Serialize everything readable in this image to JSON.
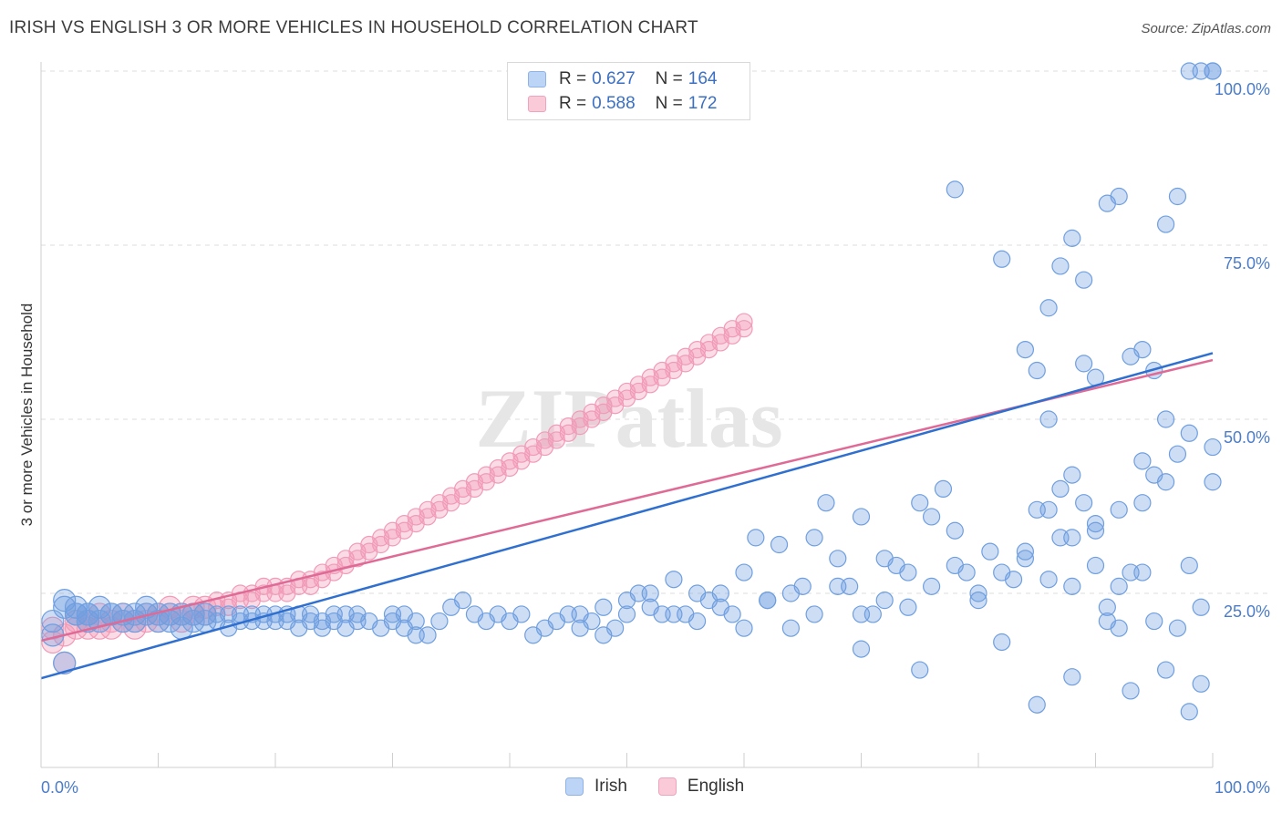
{
  "title": "IRISH VS ENGLISH 3 OR MORE VEHICLES IN HOUSEHOLD CORRELATION CHART",
  "source": "Source: ZipAtlas.com",
  "watermark": "ZIPatlas",
  "colors": {
    "irish": "#6f9fe0",
    "english": "#f29ab8",
    "irish_line": "#2f6fcf",
    "english_line": "#e06a96",
    "tick_text": "#4a7cc9"
  },
  "legend": {
    "irish": {
      "r_label": "R =",
      "r_value": "0.627",
      "n_label": "N =",
      "n_value": "164"
    },
    "english": {
      "r_label": "R =",
      "r_value": "0.588",
      "n_label": "N =",
      "n_value": "172"
    }
  },
  "chart_data": {
    "type": "scatter",
    "title": "IRISH VS ENGLISH 3 OR MORE VEHICLES IN HOUSEHOLD CORRELATION CHART",
    "xlabel": "",
    "ylabel": "3 or more Vehicles in Household",
    "xlim": [
      0,
      100
    ],
    "ylim": [
      0,
      100
    ],
    "x_tick_labels": [
      "0.0%",
      "100.0%"
    ],
    "y_tick_labels": [
      "25.0%",
      "50.0%",
      "75.0%",
      "100.0%"
    ],
    "y_ticks": [
      25,
      50,
      75,
      100
    ],
    "grid": "horizontal dashed",
    "legend_position": "top-center",
    "series": [
      {
        "name": "Irish",
        "trend": {
          "x0": 0,
          "y0": 12.8,
          "x1": 100,
          "y1": 59.5
        },
        "points": [
          [
            2,
            24
          ],
          [
            2,
            23
          ],
          [
            3,
            22
          ],
          [
            3,
            22
          ],
          [
            4,
            21
          ],
          [
            4,
            22
          ],
          [
            5,
            23
          ],
          [
            5,
            21
          ],
          [
            6,
            22
          ],
          [
            6,
            22
          ],
          [
            7,
            21
          ],
          [
            7,
            22
          ],
          [
            8,
            22
          ],
          [
            8,
            21
          ],
          [
            9,
            22
          ],
          [
            9,
            23
          ],
          [
            10,
            21
          ],
          [
            10,
            22
          ],
          [
            11,
            22
          ],
          [
            11,
            21
          ],
          [
            12,
            22
          ],
          [
            12,
            20
          ],
          [
            13,
            21
          ],
          [
            13,
            22
          ],
          [
            14,
            22
          ],
          [
            14,
            21
          ],
          [
            15,
            22
          ],
          [
            15,
            21
          ],
          [
            16,
            22
          ],
          [
            16,
            20
          ],
          [
            17,
            21
          ],
          [
            17,
            22
          ],
          [
            18,
            22
          ],
          [
            18,
            21
          ],
          [
            19,
            22
          ],
          [
            19,
            21
          ],
          [
            20,
            22
          ],
          [
            20,
            21
          ],
          [
            21,
            22
          ],
          [
            21,
            21
          ],
          [
            22,
            20
          ],
          [
            22,
            22
          ],
          [
            23,
            21
          ],
          [
            23,
            22
          ],
          [
            24,
            21
          ],
          [
            24,
            20
          ],
          [
            25,
            22
          ],
          [
            25,
            21
          ],
          [
            26,
            22
          ],
          [
            26,
            20
          ],
          [
            27,
            22
          ],
          [
            27,
            21
          ],
          [
            28,
            21
          ],
          [
            29,
            20
          ],
          [
            30,
            21
          ],
          [
            30,
            22
          ],
          [
            31,
            20
          ],
          [
            31,
            22
          ],
          [
            32,
            21
          ],
          [
            32,
            19
          ],
          [
            33,
            19
          ],
          [
            34,
            21
          ],
          [
            35,
            23
          ],
          [
            36,
            24
          ],
          [
            37,
            22
          ],
          [
            38,
            21
          ],
          [
            39,
            22
          ],
          [
            40,
            21
          ],
          [
            41,
            22
          ],
          [
            42,
            19
          ],
          [
            43,
            20
          ],
          [
            44,
            21
          ],
          [
            45,
            22
          ],
          [
            46,
            20
          ],
          [
            47,
            21
          ],
          [
            48,
            19
          ],
          [
            49,
            20
          ],
          [
            50,
            22
          ],
          [
            51,
            25
          ],
          [
            52,
            23
          ],
          [
            53,
            22
          ],
          [
            54,
            27
          ],
          [
            55,
            22
          ],
          [
            56,
            25
          ],
          [
            57,
            24
          ],
          [
            58,
            25
          ],
          [
            59,
            22
          ],
          [
            60,
            28
          ],
          [
            61,
            33
          ],
          [
            62,
            24
          ],
          [
            63,
            32
          ],
          [
            64,
            20
          ],
          [
            65,
            26
          ],
          [
            66,
            33
          ],
          [
            67,
            38
          ],
          [
            68,
            30
          ],
          [
            69,
            26
          ],
          [
            70,
            36
          ],
          [
            71,
            22
          ],
          [
            72,
            24
          ],
          [
            73,
            29
          ],
          [
            74,
            23
          ],
          [
            75,
            38
          ],
          [
            76,
            36
          ],
          [
            77,
            40
          ],
          [
            78,
            34
          ],
          [
            79,
            28
          ],
          [
            80,
            25
          ],
          [
            81,
            31
          ],
          [
            82,
            28
          ],
          [
            83,
            27
          ],
          [
            84,
            30
          ],
          [
            85,
            37
          ],
          [
            86,
            50
          ],
          [
            87,
            40
          ],
          [
            88,
            33
          ],
          [
            89,
            58
          ],
          [
            90,
            34
          ],
          [
            91,
            23
          ],
          [
            92,
            26
          ],
          [
            93,
            28
          ],
          [
            94,
            38
          ],
          [
            95,
            42
          ],
          [
            96,
            50
          ],
          [
            97,
            45
          ],
          [
            98,
            29
          ],
          [
            99,
            23
          ],
          [
            100,
            46
          ],
          [
            46,
            22
          ],
          [
            48,
            23
          ],
          [
            50,
            24
          ],
          [
            52,
            25
          ],
          [
            54,
            22
          ],
          [
            56,
            21
          ],
          [
            58,
            23
          ],
          [
            60,
            20
          ],
          [
            62,
            24
          ],
          [
            64,
            25
          ],
          [
            66,
            22
          ],
          [
            68,
            26
          ],
          [
            70,
            22
          ],
          [
            72,
            30
          ],
          [
            74,
            28
          ],
          [
            76,
            26
          ],
          [
            78,
            29
          ],
          [
            80,
            24
          ],
          [
            82,
            18
          ],
          [
            84,
            31
          ],
          [
            86,
            27
          ],
          [
            88,
            26
          ],
          [
            90,
            29
          ],
          [
            92,
            37
          ],
          [
            94,
            44
          ],
          [
            96,
            41
          ],
          [
            98,
            48
          ],
          [
            100,
            41
          ],
          [
            78,
            83
          ],
          [
            82,
            73
          ],
          [
            84,
            60
          ],
          [
            85,
            57
          ],
          [
            86,
            66
          ],
          [
            87,
            72
          ],
          [
            88,
            76
          ],
          [
            89,
            70
          ],
          [
            90,
            56
          ],
          [
            91,
            81
          ],
          [
            92,
            82
          ],
          [
            93,
            59
          ],
          [
            94,
            60
          ],
          [
            95,
            57
          ],
          [
            96,
            78
          ],
          [
            97,
            82
          ],
          [
            98,
            100
          ],
          [
            99,
            100
          ],
          [
            100,
            100
          ],
          [
            89,
            38
          ],
          [
            88,
            42
          ],
          [
            87,
            33
          ],
          [
            86,
            37
          ],
          [
            90,
            35
          ],
          [
            91,
            21
          ],
          [
            92,
            20
          ],
          [
            93,
            11
          ],
          [
            94,
            28
          ],
          [
            95,
            21
          ],
          [
            96,
            14
          ],
          [
            97,
            20
          ],
          [
            98,
            8
          ],
          [
            99,
            12
          ],
          [
            100,
            100
          ],
          [
            70,
            17
          ],
          [
            75,
            14
          ],
          [
            85,
            9
          ],
          [
            88,
            13
          ],
          [
            1,
            19
          ],
          [
            1,
            21
          ],
          [
            2,
            15
          ],
          [
            3,
            23
          ],
          [
            4,
            22
          ]
        ]
      },
      {
        "name": "English",
        "trend": {
          "x0": 0,
          "y0": 18.2,
          "x1": 100,
          "y1": 58.5
        },
        "points": [
          [
            1,
            18
          ],
          [
            1,
            20
          ],
          [
            2,
            19
          ],
          [
            2,
            15
          ],
          [
            3,
            21
          ],
          [
            3,
            20
          ],
          [
            4,
            20
          ],
          [
            4,
            21
          ],
          [
            5,
            20
          ],
          [
            5,
            22
          ],
          [
            6,
            21
          ],
          [
            6,
            20
          ],
          [
            7,
            21
          ],
          [
            7,
            22
          ],
          [
            8,
            20
          ],
          [
            8,
            21
          ],
          [
            9,
            22
          ],
          [
            9,
            21
          ],
          [
            10,
            22
          ],
          [
            10,
            21
          ],
          [
            11,
            23
          ],
          [
            11,
            22
          ],
          [
            12,
            22
          ],
          [
            12,
            21
          ],
          [
            13,
            23
          ],
          [
            13,
            22
          ],
          [
            14,
            22
          ],
          [
            14,
            23
          ],
          [
            15,
            24
          ],
          [
            15,
            23
          ],
          [
            16,
            23
          ],
          [
            16,
            24
          ],
          [
            17,
            24
          ],
          [
            17,
            25
          ],
          [
            18,
            25
          ],
          [
            18,
            24
          ],
          [
            19,
            26
          ],
          [
            19,
            25
          ],
          [
            20,
            25
          ],
          [
            20,
            26
          ],
          [
            21,
            26
          ],
          [
            21,
            25
          ],
          [
            22,
            27
          ],
          [
            22,
            26
          ],
          [
            23,
            26
          ],
          [
            23,
            27
          ],
          [
            24,
            27
          ],
          [
            24,
            28
          ],
          [
            25,
            28
          ],
          [
            25,
            29
          ],
          [
            26,
            29
          ],
          [
            26,
            30
          ],
          [
            27,
            30
          ],
          [
            27,
            31
          ],
          [
            28,
            31
          ],
          [
            28,
            32
          ],
          [
            29,
            32
          ],
          [
            29,
            33
          ],
          [
            30,
            33
          ],
          [
            30,
            34
          ],
          [
            31,
            34
          ],
          [
            31,
            35
          ],
          [
            32,
            35
          ],
          [
            32,
            36
          ],
          [
            33,
            36
          ],
          [
            33,
            37
          ],
          [
            34,
            37
          ],
          [
            34,
            38
          ],
          [
            35,
            38
          ],
          [
            35,
            39
          ],
          [
            36,
            39
          ],
          [
            36,
            40
          ],
          [
            37,
            40
          ],
          [
            37,
            41
          ],
          [
            38,
            41
          ],
          [
            38,
            42
          ],
          [
            39,
            42
          ],
          [
            39,
            43
          ],
          [
            40,
            43
          ],
          [
            40,
            44
          ],
          [
            41,
            44
          ],
          [
            41,
            45
          ],
          [
            42,
            45
          ],
          [
            42,
            46
          ],
          [
            43,
            46
          ],
          [
            43,
            47
          ],
          [
            44,
            47
          ],
          [
            44,
            48
          ],
          [
            45,
            48
          ],
          [
            45,
            49
          ],
          [
            46,
            49
          ],
          [
            46,
            50
          ],
          [
            47,
            50
          ],
          [
            47,
            51
          ],
          [
            48,
            51
          ],
          [
            48,
            52
          ],
          [
            49,
            52
          ],
          [
            49,
            53
          ],
          [
            50,
            53
          ],
          [
            50,
            54
          ],
          [
            51,
            54
          ],
          [
            51,
            55
          ],
          [
            52,
            55
          ],
          [
            52,
            56
          ],
          [
            53,
            56
          ],
          [
            53,
            57
          ],
          [
            54,
            57
          ],
          [
            54,
            58
          ],
          [
            55,
            58
          ],
          [
            55,
            59
          ],
          [
            56,
            59
          ],
          [
            56,
            60
          ],
          [
            57,
            60
          ],
          [
            57,
            61
          ],
          [
            58,
            61
          ],
          [
            58,
            62
          ],
          [
            59,
            62
          ],
          [
            59,
            63
          ],
          [
            60,
            63
          ],
          [
            60,
            64
          ]
        ]
      }
    ]
  }
}
